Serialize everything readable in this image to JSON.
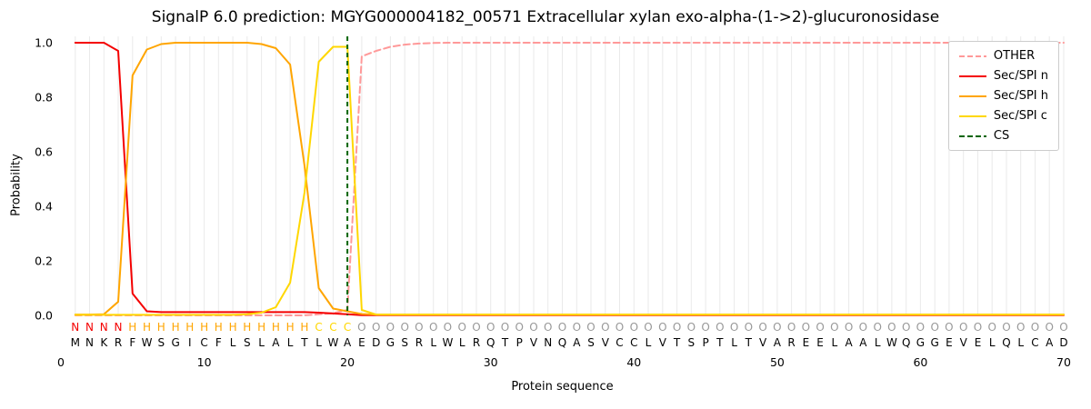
{
  "title": "SignalP 6.0 prediction: MGYG000004182_00571 Extracellular xylan exo-alpha-(1->2)-glucuronosidase",
  "legend": {
    "entries": [
      {
        "label": "OTHER",
        "color": "#ff9999",
        "dash": true
      },
      {
        "label": "Sec/SPI n",
        "color": "#f40000",
        "dash": false
      },
      {
        "label": "Sec/SPI h",
        "color": "#ffa500",
        "dash": false
      },
      {
        "label": "Sec/SPI c",
        "color": "#ffd700",
        "dash": false
      },
      {
        "label": "CS",
        "color": "#006400",
        "dash": true
      }
    ]
  },
  "chart_data": {
    "type": "line",
    "title": "SignalP 6.0 prediction: MGYG000004182_00571 Extracellular xylan exo-alpha-(1->2)-glucuronosidase",
    "xlabel": "Protein sequence",
    "ylabel": "Probability",
    "xlim": [
      0,
      70
    ],
    "ylim": [
      0,
      1.04
    ],
    "x_ticks": [
      0,
      10,
      20,
      30,
      40,
      50,
      60,
      70
    ],
    "y_ticks": [
      "0.0",
      "0.2",
      "0.4",
      "0.6",
      "0.8",
      "1.0"
    ],
    "grid": "vertical-per-residue",
    "grid_color": "#eaeaea",
    "legend_position": "upper right",
    "cs_position": 20,
    "cs_color": "#006400",
    "sequence": "MNKRFWSGICFLSLALTLWAEDGSRLWLRQTPVNQASVCCLVTSPTLTVAREELAALWQGGEVELQLCAD",
    "region_labels": "NNNNHHHHHHHHHHHHHCCCOOOOOOOOOOOOOOOOOOOOOOOOOOOOOOOOOOOOOOOOOOOOOOOOOO",
    "region_colors": {
      "N": "#f40000",
      "H": "#ffa500",
      "C": "#ffd700",
      "O": "#999999"
    },
    "series": [
      {
        "name": "OTHER",
        "color": "#ff9999",
        "dash": "7 4",
        "values": [
          0,
          0,
          0,
          0,
          0,
          0,
          0,
          0,
          0,
          0,
          0,
          0,
          0,
          0,
          0,
          0,
          0,
          0.004,
          0.008,
          0.02,
          0.95,
          0.97,
          0.985,
          0.993,
          0.997,
          0.999,
          1,
          1,
          1,
          1,
          1,
          1,
          1,
          1,
          1,
          1,
          1,
          1,
          1,
          1,
          1,
          1,
          1,
          1,
          1,
          1,
          1,
          1,
          1,
          1,
          1,
          1,
          1,
          1,
          1,
          1,
          1,
          1,
          1,
          1,
          1,
          1,
          1,
          1,
          1,
          1,
          1,
          1,
          1,
          1
        ]
      },
      {
        "name": "Sec/SPI n",
        "color": "#f40000",
        "dash": null,
        "values": [
          1,
          1,
          1,
          0.97,
          0.08,
          0.015,
          0.012,
          0.012,
          0.012,
          0.012,
          0.012,
          0.012,
          0.012,
          0.012,
          0.012,
          0.012,
          0.012,
          0.01,
          0.007,
          0.004,
          0.001,
          0.001,
          0.001,
          0.001,
          0.001,
          0.001,
          0.001,
          0.001,
          0.001,
          0.001,
          0.001,
          0.001,
          0.001,
          0.001,
          0.001,
          0.001,
          0.001,
          0.001,
          0.001,
          0.001,
          0.001,
          0.001,
          0.001,
          0.001,
          0.001,
          0.001,
          0.001,
          0.001,
          0.001,
          0.001,
          0.001,
          0.001,
          0.001,
          0.001,
          0.001,
          0.001,
          0.001,
          0.001,
          0.001,
          0.001,
          0.001,
          0.001,
          0.001,
          0.001,
          0.001,
          0.001,
          0.001,
          0.001,
          0.001,
          0.001
        ]
      },
      {
        "name": "Sec/SPI h",
        "color": "#ffa500",
        "dash": null,
        "values": [
          0.003,
          0.003,
          0.004,
          0.05,
          0.88,
          0.975,
          0.995,
          1,
          1,
          1,
          1,
          1,
          1,
          0.995,
          0.98,
          0.92,
          0.55,
          0.1,
          0.025,
          0.015,
          0.005,
          0.003,
          0.003,
          0.003,
          0.003,
          0.003,
          0.003,
          0.003,
          0.003,
          0.003,
          0.003,
          0.003,
          0.003,
          0.003,
          0.003,
          0.003,
          0.003,
          0.003,
          0.003,
          0.003,
          0.003,
          0.003,
          0.003,
          0.003,
          0.003,
          0.003,
          0.003,
          0.003,
          0.003,
          0.003,
          0.003,
          0.003,
          0.003,
          0.003,
          0.003,
          0.003,
          0.003,
          0.003,
          0.003,
          0.003,
          0.003,
          0.003,
          0.003,
          0.003,
          0.003,
          0.003,
          0.003,
          0.003,
          0.003,
          0.003
        ]
      },
      {
        "name": "Sec/SPI c",
        "color": "#ffd700",
        "dash": null,
        "values": [
          0.002,
          0.002,
          0.002,
          0.002,
          0.002,
          0.002,
          0.002,
          0.002,
          0.002,
          0.002,
          0.002,
          0.002,
          0.004,
          0.01,
          0.03,
          0.12,
          0.45,
          0.93,
          0.985,
          0.985,
          0.02,
          0.003,
          0.003,
          0.003,
          0.003,
          0.003,
          0.003,
          0.003,
          0.003,
          0.003,
          0.003,
          0.003,
          0.003,
          0.003,
          0.003,
          0.003,
          0.003,
          0.003,
          0.003,
          0.003,
          0.003,
          0.003,
          0.003,
          0.003,
          0.003,
          0.003,
          0.003,
          0.003,
          0.003,
          0.003,
          0.003,
          0.003,
          0.003,
          0.003,
          0.003,
          0.003,
          0.003,
          0.003,
          0.003,
          0.003,
          0.003,
          0.003,
          0.003,
          0.003,
          0.003,
          0.003,
          0.003,
          0.003,
          0.003,
          0.003
        ]
      }
    ]
  }
}
